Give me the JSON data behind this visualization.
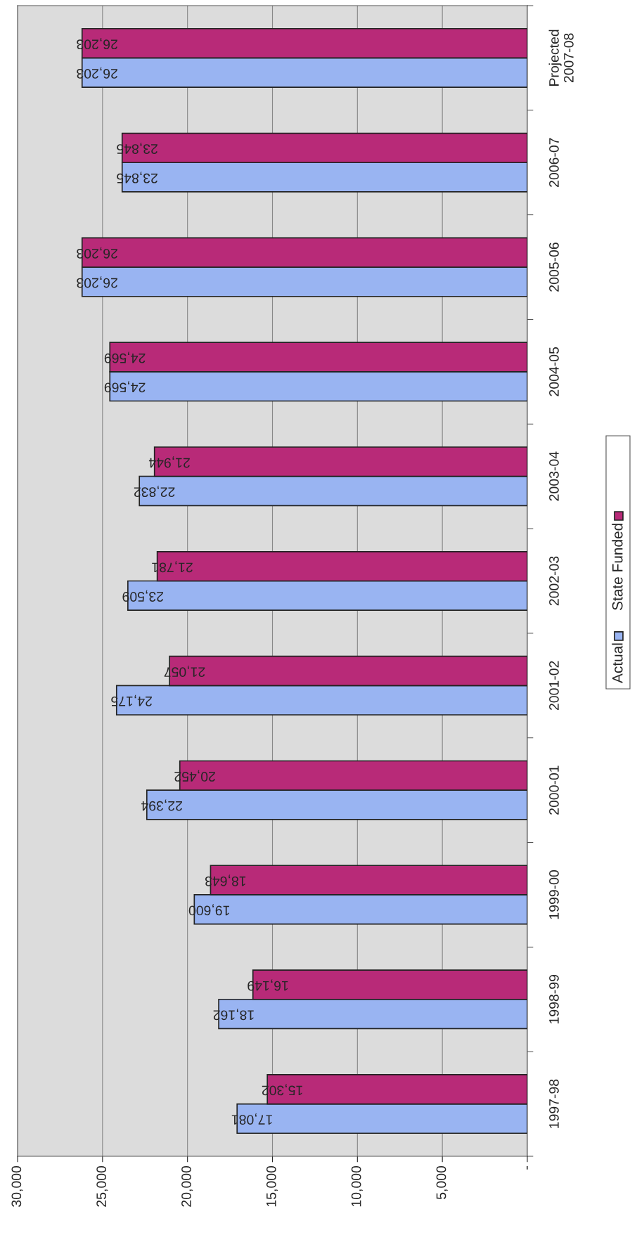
{
  "chart_data": {
    "type": "bar",
    "orientation": "horizontal",
    "categories": [
      "Projected\n2007-08",
      "2006-07",
      "2005-06",
      "2004-05",
      "2003-04",
      "2002-03",
      "2001-02",
      "2000-01",
      "1999-00",
      "1998-99",
      "1997-98"
    ],
    "series": [
      {
        "name": "Actual",
        "color": "#99b4f2",
        "values": [
          26203,
          23845,
          26203,
          24569,
          22832,
          23509,
          24175,
          22394,
          19600,
          18162,
          17081
        ],
        "value_labels": [
          "26,203",
          "23,845",
          "26,203",
          "24,569",
          "22,832",
          "23,509",
          "24,175",
          "22,394",
          "19,600",
          "18,162",
          "17,081"
        ]
      },
      {
        "name": "State Funded",
        "color": "#b82a78",
        "values": [
          26203,
          23845,
          26203,
          24569,
          21944,
          21781,
          21057,
          20452,
          18643,
          16149,
          15302
        ],
        "value_labels": [
          "26,203",
          "23,845",
          "26,203",
          "24,569",
          "21,944",
          "21,781",
          "21,057",
          "20,452",
          "18,643",
          "16,149",
          "15,302"
        ]
      }
    ],
    "xlim": [
      30000,
      0
    ],
    "xticks": [
      {
        "value": 30000,
        "label": "30,000"
      },
      {
        "value": 25000,
        "label": "25,000"
      },
      {
        "value": 20000,
        "label": "20,000"
      },
      {
        "value": 15000,
        "label": "15,000"
      },
      {
        "value": 10000,
        "label": "10,000"
      },
      {
        "value": 5000,
        "label": "5,000"
      },
      {
        "value": 0,
        "label": "-"
      }
    ],
    "grid": "x",
    "legend": "right"
  }
}
